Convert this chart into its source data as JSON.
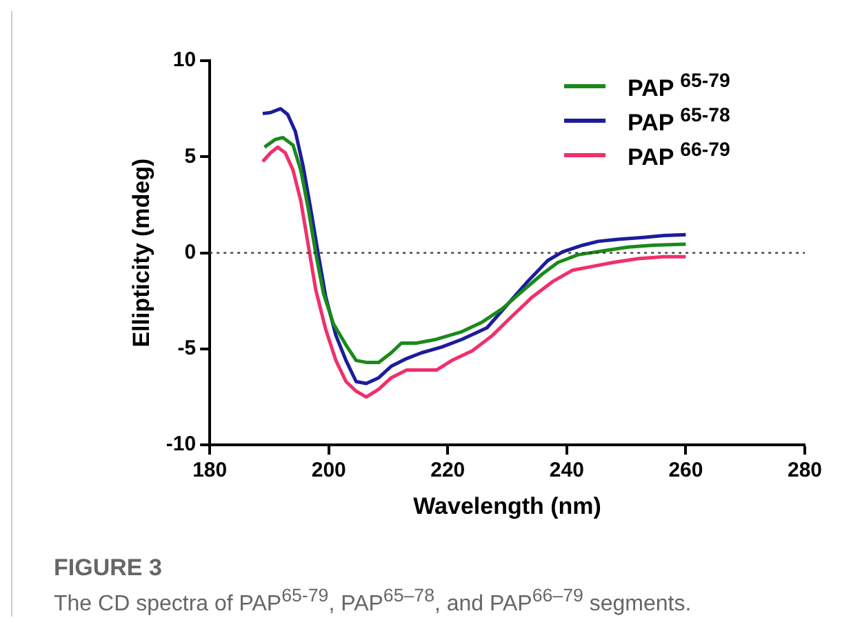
{
  "chart_data": {
    "type": "line",
    "xlabel": "Wavelength (nm)",
    "ylabel": "Ellipticity (mdeg)",
    "xlim": [
      180,
      280
    ],
    "xticks": [
      180,
      200,
      220,
      240,
      260,
      280
    ],
    "ylim": [
      -10,
      10
    ],
    "yticks": [
      -10,
      -5,
      0,
      5,
      10
    ],
    "grid": false,
    "legend": "top right",
    "marker": "none",
    "line_style": "solid",
    "ref_lines": [
      {
        "axis": "y",
        "value": 0,
        "line_style": "dotted",
        "color": "#333333"
      }
    ],
    "annotations": [
      "FIGURE 3",
      "The CD spectra of PAP$^{65-79}$, PAP$^{65–78}$, and PAP$^{66–79}$ segments."
    ],
    "series": [
      {
        "name": "PAP $^{65-79}$",
        "color": "#1a8a1a",
        "x": [
          189.2,
          191.0,
          192.3,
          194.0,
          195.3,
          196.5,
          197.8,
          199.1,
          200.8,
          202.9,
          204.6,
          206.3,
          208.4,
          210.5,
          212.2,
          214.7,
          218.1,
          222.4,
          225.8,
          229.2,
          232.5,
          235.9,
          238.5,
          241.9,
          246.1,
          250.3,
          254.6,
          260.0
        ],
        "values": [
          5.5,
          5.9,
          6.0,
          5.6,
          4.3,
          2.4,
          0.0,
          -2.1,
          -3.7,
          -4.8,
          -5.6,
          -5.7,
          -5.7,
          -5.2,
          -4.7,
          -4.7,
          -4.5,
          -4.1,
          -3.6,
          -2.9,
          -2.0,
          -1.1,
          -0.5,
          -0.1,
          0.1,
          0.3,
          0.4,
          0.45
        ]
      },
      {
        "name": "PAP $^{65-78}$",
        "color": "#1c1c9c",
        "x": [
          188.9,
          190.2,
          191.9,
          193.1,
          194.4,
          195.7,
          196.9,
          198.2,
          199.5,
          201.2,
          202.9,
          204.6,
          206.3,
          208.4,
          210.5,
          213.1,
          215.6,
          219.0,
          222.4,
          226.6,
          230.0,
          233.4,
          236.8,
          239.3,
          242.7,
          245.3,
          248.6,
          252.9,
          256.3,
          260.0
        ],
        "values": [
          7.25,
          7.3,
          7.5,
          7.2,
          6.3,
          4.5,
          2.4,
          0.0,
          -2.3,
          -4.3,
          -5.6,
          -6.7,
          -6.8,
          -6.5,
          -5.9,
          -5.5,
          -5.2,
          -4.9,
          -4.5,
          -3.9,
          -2.7,
          -1.5,
          -0.4,
          0.05,
          0.4,
          0.6,
          0.7,
          0.8,
          0.9,
          0.95
        ]
      },
      {
        "name": "PAP $^{66-79}$",
        "color": "#f0306a",
        "x": [
          188.9,
          190.2,
          191.4,
          192.7,
          194.0,
          195.3,
          196.5,
          197.8,
          199.5,
          201.2,
          202.9,
          204.6,
          206.3,
          208.4,
          210.5,
          213.1,
          215.6,
          218.1,
          220.7,
          224.1,
          227.5,
          230.8,
          234.2,
          237.6,
          241.0,
          244.4,
          247.8,
          252.0,
          256.3,
          260.0
        ],
        "values": [
          4.75,
          5.2,
          5.5,
          5.2,
          4.3,
          2.7,
          0.5,
          -1.9,
          -4.0,
          -5.6,
          -6.7,
          -7.2,
          -7.5,
          -7.1,
          -6.5,
          -6.1,
          -6.1,
          -6.1,
          -5.6,
          -5.1,
          -4.3,
          -3.3,
          -2.3,
          -1.5,
          -0.9,
          -0.7,
          -0.5,
          -0.3,
          -0.2,
          -0.2
        ]
      }
    ]
  }
}
